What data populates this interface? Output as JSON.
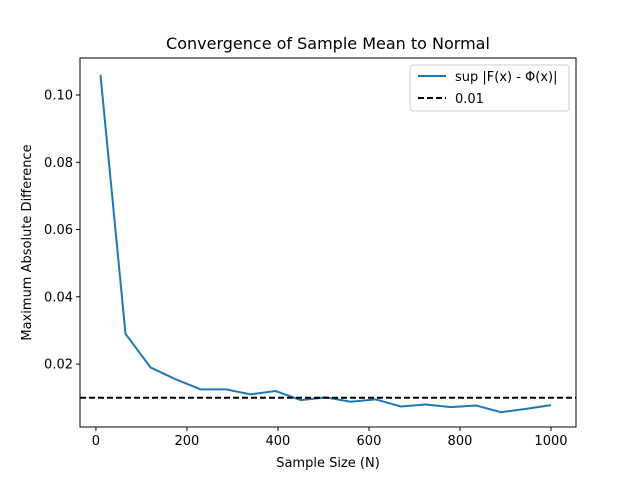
{
  "chart_data": {
    "type": "line",
    "title": "Convergence of Sample Mean to Normal",
    "xlabel": "Sample Size (N)",
    "ylabel": "Maximum Absolute Difference",
    "xlim": [
      -35,
      1055
    ],
    "ylim": [
      0.0013,
      0.111
    ],
    "xticks": [
      0,
      200,
      400,
      600,
      800,
      1000
    ],
    "xtick_labels": [
      "0",
      "200",
      "400",
      "600",
      "800",
      "1000"
    ],
    "yticks": [
      0.02,
      0.04,
      0.06,
      0.08,
      0.1
    ],
    "ytick_labels": [
      "0.02",
      "0.04",
      "0.06",
      "0.08",
      "0.10"
    ],
    "grid": false,
    "legend_position": "top-right",
    "series": [
      {
        "name": "sup |F(x) - Φ(x)|",
        "color": "#1f77b4",
        "style": "solid",
        "x": [
          10,
          65,
          120,
          175,
          230,
          285,
          340,
          395,
          450,
          505,
          560,
          615,
          670,
          725,
          780,
          835,
          890,
          945,
          1000
        ],
        "y": [
          0.106,
          0.029,
          0.019,
          0.0155,
          0.0125,
          0.0125,
          0.011,
          0.012,
          0.0093,
          0.0101,
          0.0088,
          0.0095,
          0.0074,
          0.008,
          0.0072,
          0.0077,
          0.0057,
          0.0067,
          0.0078
        ]
      },
      {
        "name": "0.01",
        "color": "#000000",
        "style": "dashed",
        "hline": 0.01
      }
    ]
  }
}
